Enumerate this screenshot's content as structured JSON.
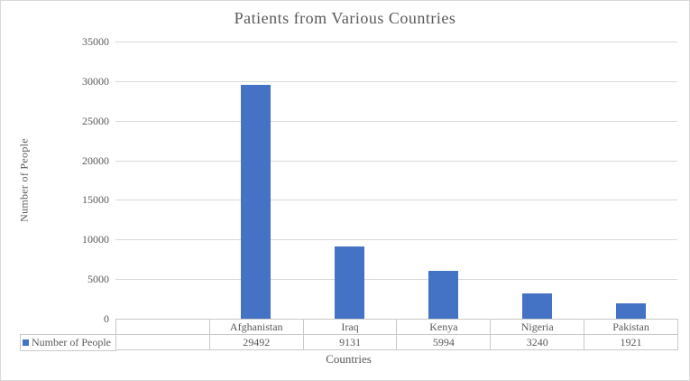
{
  "chart_data": {
    "type": "bar",
    "title": "Patients from Various Countries",
    "categories": [
      "",
      "Afghanistan",
      "Iraq",
      "Kenya",
      "Nigeria",
      "Pakistan"
    ],
    "series": [
      {
        "name": "Number of People",
        "values": [
          null,
          29492,
          9131,
          5994,
          3240,
          1921
        ],
        "color": "#4472C4"
      }
    ],
    "xlabel": "Countries",
    "ylabel": "Number of People",
    "ylim": [
      0,
      35000
    ],
    "yticks": [
      0,
      5000,
      10000,
      15000,
      20000,
      25000,
      30000,
      35000
    ],
    "grid": true,
    "data_table_shown": true,
    "legend_position": "data-table-left"
  },
  "colors": {
    "bar": "#4472C4",
    "gridline": "#D9D9D9",
    "table_border": "#C9C9C9",
    "text": "#595959",
    "background": "#FFFFFF"
  }
}
